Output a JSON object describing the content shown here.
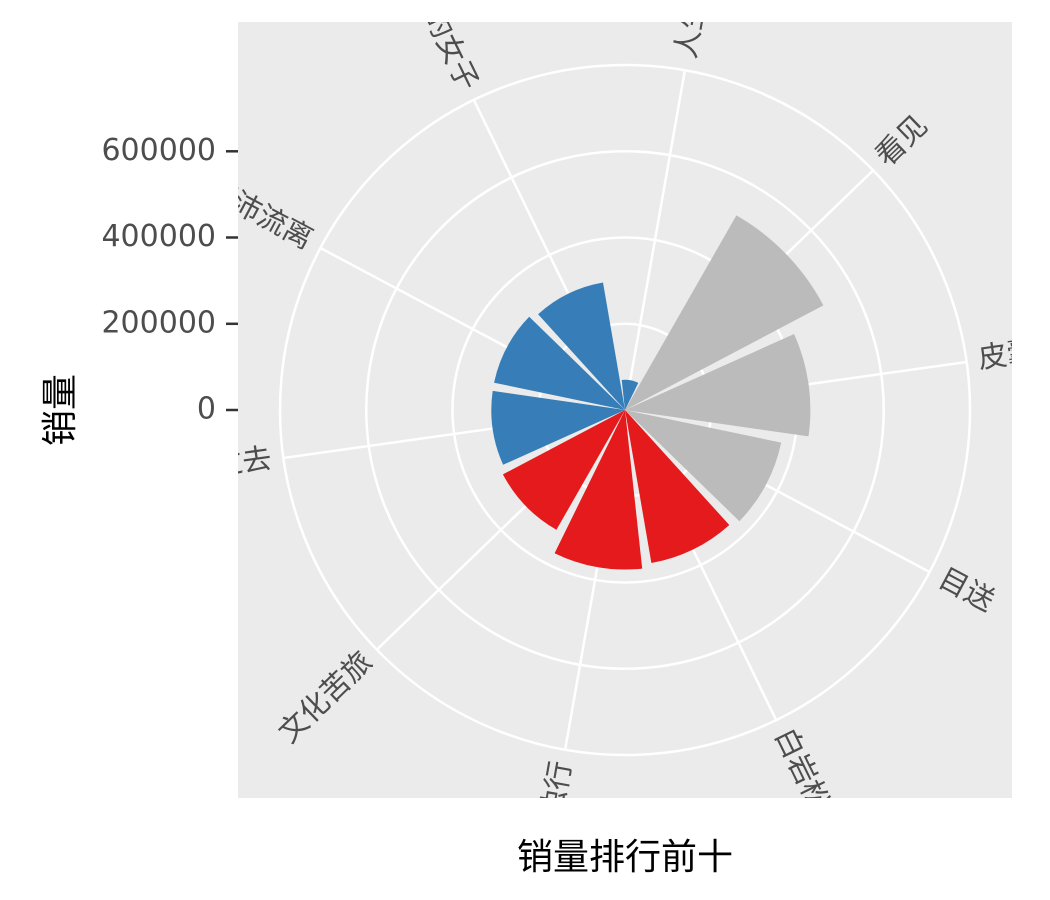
{
  "chart_data": {
    "type": "bar",
    "coord": "polar",
    "xlabel": "销量排行前十",
    "ylabel": "销量",
    "y_ticks": [
      0,
      200000,
      400000,
      600000
    ],
    "y_tick_labels": [
      "0",
      "200000",
      "400000",
      "600000"
    ],
    "ylim": [
      0,
      800000
    ],
    "grid": true,
    "categories": [
      "人生不过如此",
      "看见",
      "皮囊",
      "目送",
      "白岩松",
      "自在独行",
      "文化苦旅",
      "时光将来 不念过去",
      "愿有人陪你颠沛流离",
      "做一个刚刚好的女子"
    ],
    "values": [
      70000,
      520000,
      430000,
      370000,
      360000,
      370000,
      320000,
      310000,
      310000,
      300000
    ],
    "colors": [
      "#377EB8",
      "#BBBBBB",
      "#BBBBBB",
      "#BBBBBB",
      "#E41A1C",
      "#E41A1C",
      "#E41A1C",
      "#377EB8",
      "#377EB8",
      "#377EB8"
    ],
    "panel_background": "#EBEBEB",
    "grid_color": "#FFFFFF"
  }
}
